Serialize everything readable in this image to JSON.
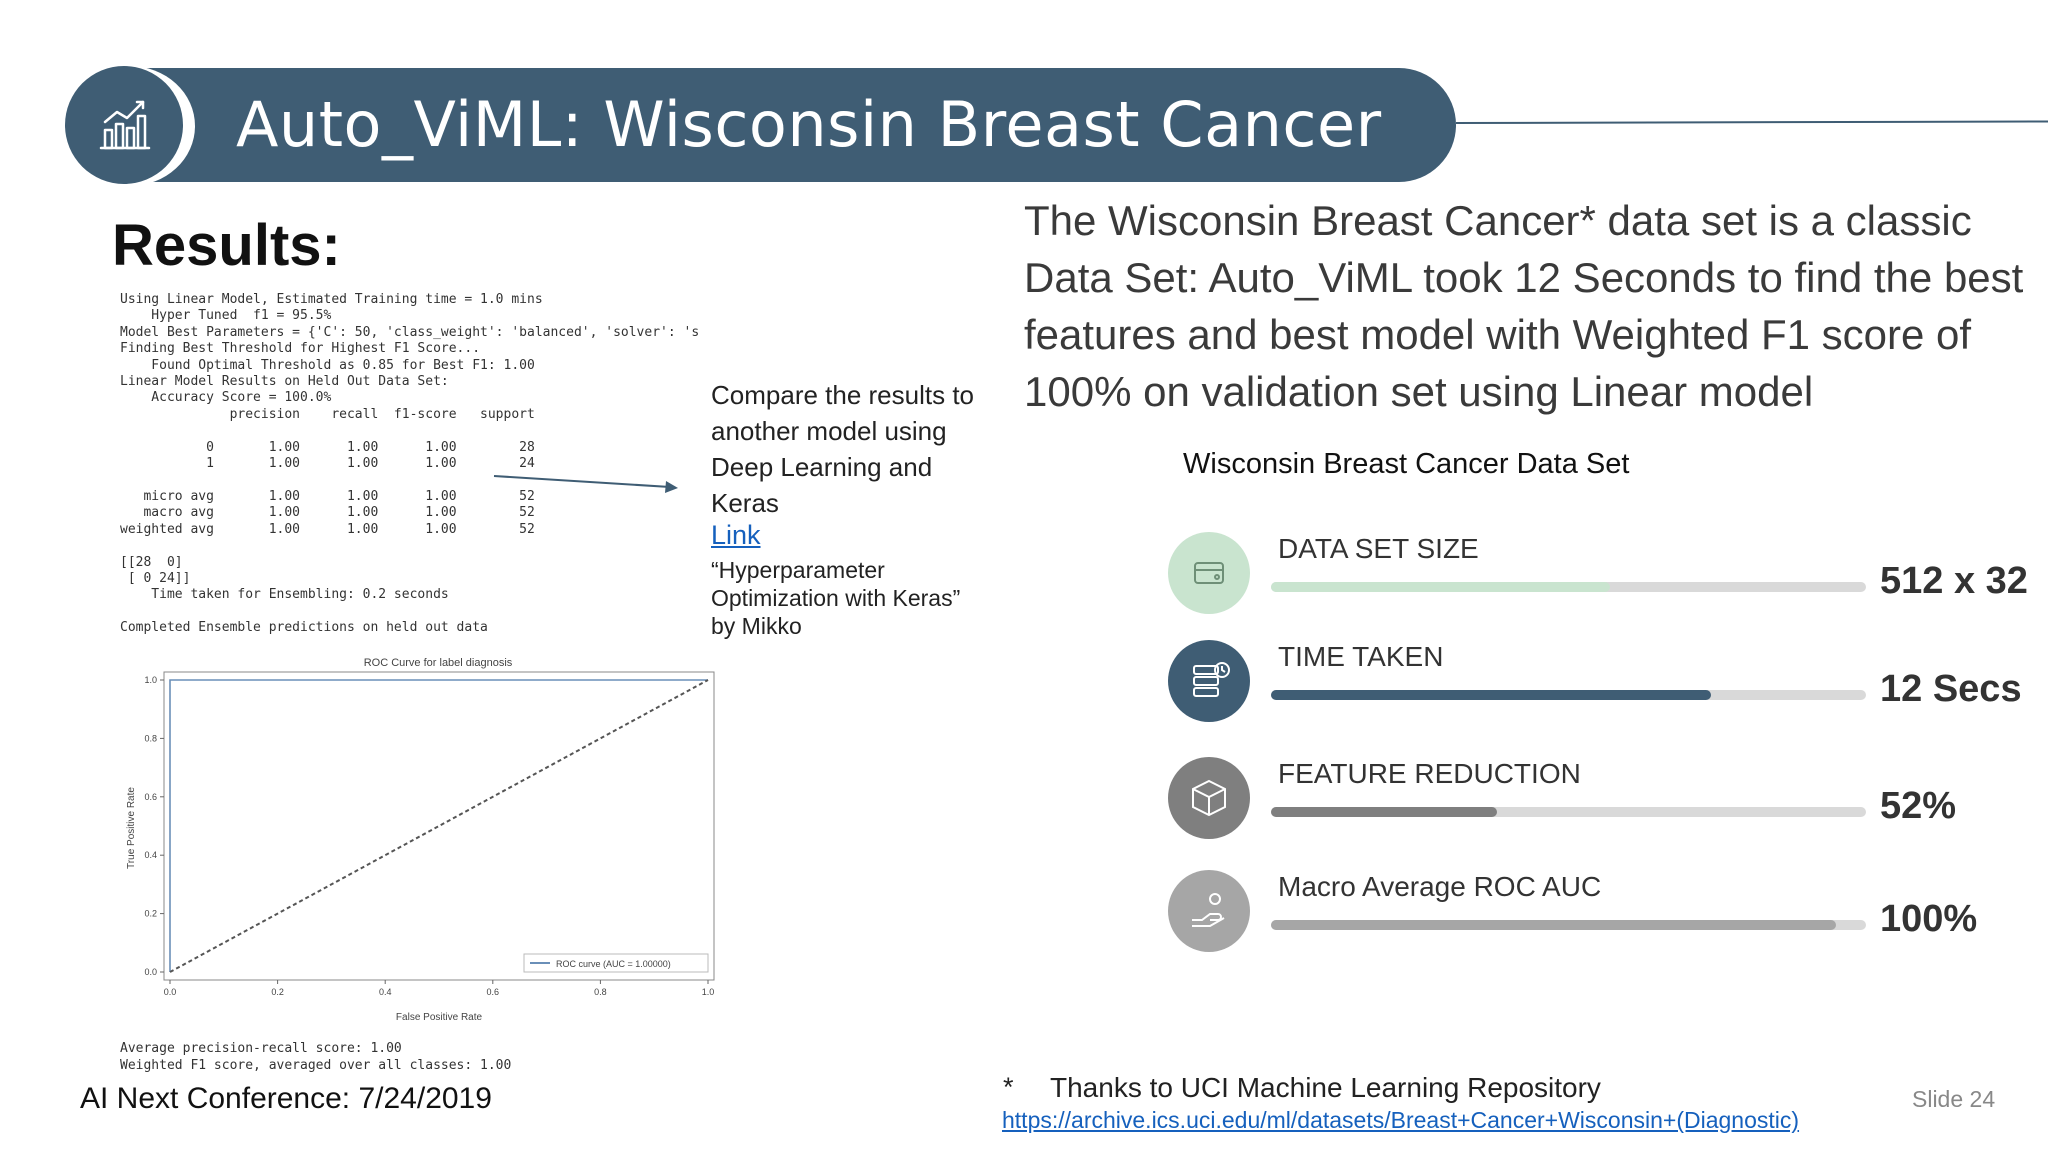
{
  "header": {
    "title": "Auto_ViML: Wisconsin Breast Cancer",
    "icon": "chart-growth-icon",
    "color": "#3f5d74"
  },
  "results_heading": "Results:",
  "code_output_lines": [
    "Using Linear Model, Estimated Training time = 1.0 mins",
    "    Hyper Tuned  f1 = 95.5%",
    "Model Best Parameters = {'C': 50, 'class_weight': 'balanced', 'solver': 's",
    "Finding Best Threshold for Highest F1 Score...",
    "    Found Optimal Threshold as 0.85 for Best F1: 1.00",
    "Linear Model Results on Held Out Data Set:",
    "    Accuracy Score = 100.0%",
    "              precision    recall  f1-score   support",
    "",
    "           0       1.00      1.00      1.00        28",
    "           1       1.00      1.00      1.00        24",
    "",
    "   micro avg       1.00      1.00      1.00        52",
    "   macro avg       1.00      1.00      1.00        52",
    "weighted avg       1.00      1.00      1.00        52",
    "",
    "[[28  0]",
    " [ 0 24]]",
    "    Time taken for Ensembling: 0.2 seconds",
    "",
    "Completed Ensemble predictions on held out data"
  ],
  "code_output_bottom": [
    "Average precision-recall score: 1.00",
    "Weighted F1 score, averaged over all classes: 1.00"
  ],
  "chart_data": {
    "type": "line",
    "title": "ROC Curve for label diagnosis",
    "xlabel": "False Positive Rate",
    "ylabel": "True Positive Rate",
    "xlim": [
      0,
      1.0
    ],
    "ylim": [
      0,
      1.0
    ],
    "xticks": [
      "0.0",
      "0.2",
      "0.4",
      "0.6",
      "0.8",
      "1.0"
    ],
    "yticks": [
      "0.0",
      "0.2",
      "0.4",
      "0.6",
      "0.8",
      "1.0"
    ],
    "legend": "bottom-right",
    "series": [
      {
        "name": "ROC curve (AUC = 1.00000)",
        "x": [
          0,
          0,
          1
        ],
        "y": [
          0,
          1,
          1
        ],
        "color": "#6a8fb8",
        "style": "solid"
      },
      {
        "x": [
          0,
          1
        ],
        "y": [
          0,
          1
        ],
        "color": "#555555",
        "style": "dashed"
      }
    ]
  },
  "compare": {
    "text": "Compare the results to another model using Deep Learning and Keras",
    "link": "Link",
    "quote": "“Hyperparameter Optimization with Keras” by Mikko"
  },
  "description": "The Wisconsin Breast Cancer* data set is a classic Data Set: Auto_ViML took 12 Seconds to find the best features and best model with Weighted F1 score of 100% on validation set using Linear model",
  "dataset_title": "Wisconsin Breast Cancer Data Set",
  "stats": [
    {
      "label": "DATA SET SIZE",
      "value": "512 x 32",
      "fraction": 0.57,
      "fill_color": "#c9e4cf",
      "circle_color": "#c9e4cf",
      "icon": "database-icon"
    },
    {
      "label": "TIME TAKEN",
      "value": "12 Secs",
      "fraction": 0.74,
      "fill_color": "#3f5d74",
      "circle_color": "#3f5d74",
      "icon": "server-time-icon"
    },
    {
      "label": "FEATURE REDUCTION",
      "value": "52%",
      "fraction": 0.38,
      "fill_color": "#7f7f7f",
      "circle_color": "#7f7f7f",
      "icon": "box-icon"
    },
    {
      "label": "Macro Average ROC AUC",
      "value": "100%",
      "fraction": 0.95,
      "fill_color": "#a6a6a6",
      "circle_color": "#a6a6a6",
      "icon": "hand-coin-icon"
    }
  ],
  "footnote": {
    "star": "*",
    "text": "Thanks to UCI Machine Learning Repository",
    "url": "https://archive.ics.uci.edu/ml/datasets/Breast+Cancer+Wisconsin+(Diagnostic)"
  },
  "conference": "AI Next Conference: 7/24/2019",
  "slide_number": "Slide 24"
}
